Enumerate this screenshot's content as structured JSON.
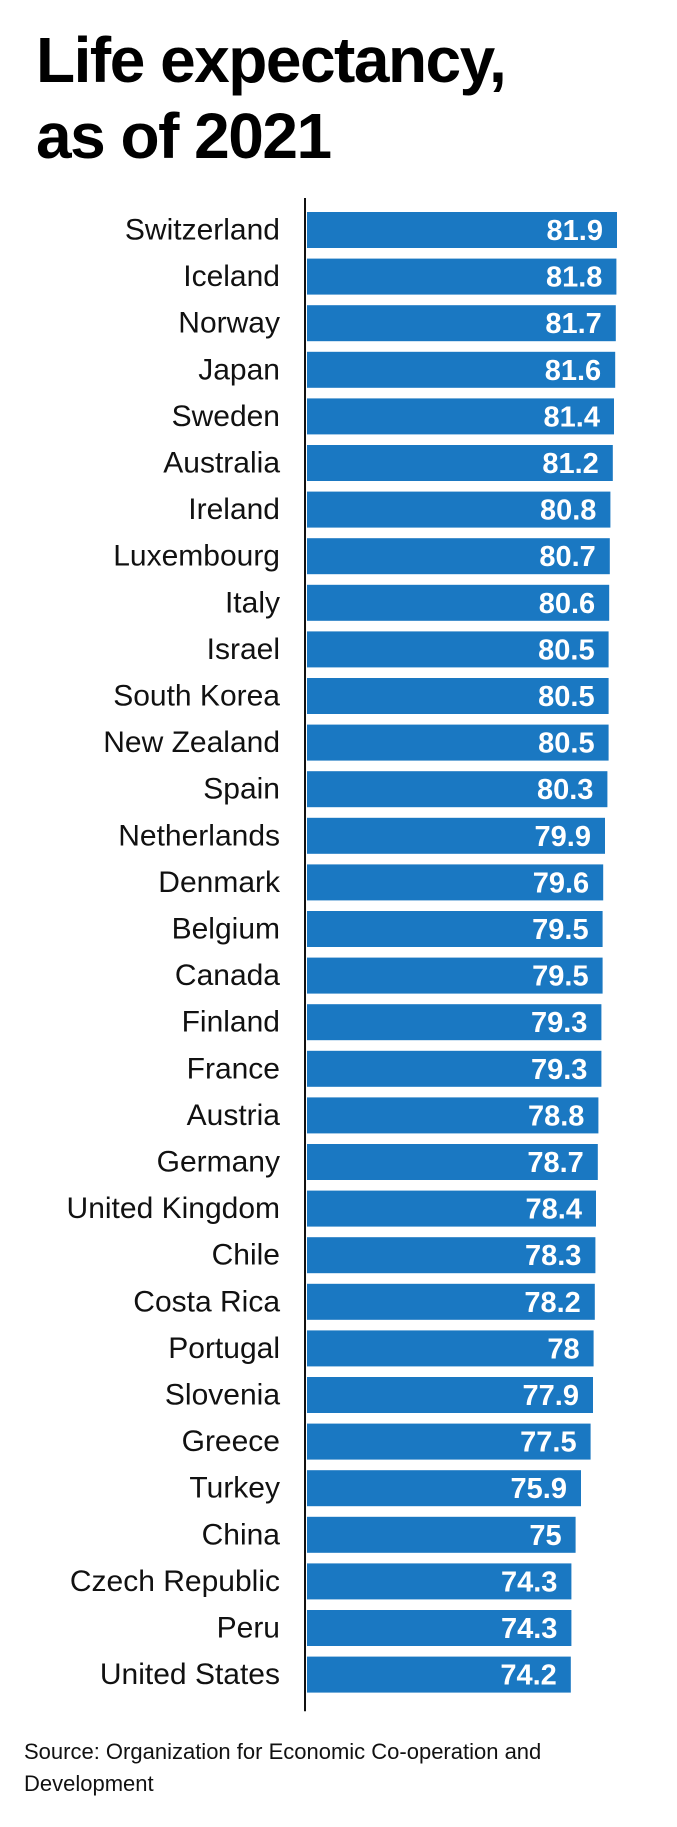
{
  "chart_data": {
    "type": "bar",
    "orientation": "horizontal",
    "title": "Life expectancy, as of 2021",
    "title_lines": [
      "Life expectancy,",
      "as of 2021"
    ],
    "source": "Source: Organization for Economic Co-operation and Development",
    "categories": [
      "Switzerland",
      "Iceland",
      "Norway",
      "Japan",
      "Sweden",
      "Australia",
      "Ireland",
      "Luxembourg",
      "Italy",
      "Israel",
      "South Korea",
      "New Zealand",
      "Spain",
      "Netherlands",
      "Denmark",
      "Belgium",
      "Canada",
      "Finland",
      "France",
      "Austria",
      "Germany",
      "United Kingdom",
      "Chile",
      "Costa Rica",
      "Portugal",
      "Slovenia",
      "Greece",
      "Turkey",
      "China",
      "Czech Republic",
      "Peru",
      "United States"
    ],
    "values": [
      81.9,
      81.8,
      81.7,
      81.6,
      81.4,
      81.2,
      80.8,
      80.7,
      80.6,
      80.5,
      80.5,
      80.5,
      80.3,
      79.9,
      79.6,
      79.5,
      79.5,
      79.3,
      79.3,
      78.8,
      78.7,
      78.4,
      78.3,
      78.2,
      78,
      77.9,
      77.5,
      75.9,
      75,
      74.3,
      74.3,
      74.2
    ],
    "value_labels": [
      "81.9",
      "81.8",
      "81.7",
      "81.6",
      "81.4",
      "81.2",
      "80.8",
      "80.7",
      "80.6",
      "80.5",
      "80.5",
      "80.5",
      "80.3",
      "79.9",
      "79.6",
      "79.5",
      "79.5",
      "79.3",
      "79.3",
      "78.8",
      "78.7",
      "78.4",
      "78.3",
      "78.2",
      "78",
      "77.9",
      "77.5",
      "75.9",
      "75",
      "74.3",
      "74.3",
      "74.2"
    ],
    "xlabel": "",
    "ylabel": "",
    "grid": false,
    "colors": {
      "bar": "#1a78c2",
      "bar_label": "#ffffff",
      "axis": "#111111",
      "category_label": "#111111"
    }
  }
}
